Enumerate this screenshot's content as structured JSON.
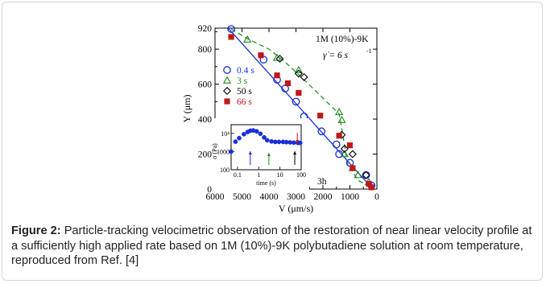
{
  "caption": {
    "label": "Figure 2:",
    "text": "Particle-tracking velocimetric observation of the restoration of near linear velocity profile at a sufficiently high applied rate based on 1M (10%)-9K polybutadiene solution at room temperature, reproduced from Ref. [4]"
  },
  "chart_data": [
    {
      "type": "scatter",
      "xlabel": "V (μm/s)",
      "ylabel": "Y (μm)",
      "xlim": [
        6000,
        0
      ],
      "ylim": [
        0,
        920
      ],
      "xticks": [
        "6000",
        "5000",
        "4000",
        "3000",
        "2000",
        "1000",
        "0"
      ],
      "yticks": [
        "0",
        "200",
        "400",
        "600",
        "800",
        "920"
      ],
      "annotations": {
        "sample": "1M (10%)-9K",
        "rate": "γ̇ = 6 s",
        "rate_exp": "-1",
        "panel": "3h"
      },
      "colors": {
        "blue": "#1a2fd6",
        "green": "#1c8a1c",
        "black": "#000000",
        "red": "#c01818"
      },
      "series": [
        {
          "name": "0.4 s",
          "marker": "circle-open",
          "color": "#1a2fd6",
          "points": [
            [
              5400,
              915
            ],
            [
              4200,
              740
            ],
            [
              3700,
              625
            ],
            [
              3400,
              575
            ],
            [
              3000,
              500
            ],
            [
              2700,
              415
            ],
            [
              2050,
              330
            ],
            [
              1500,
              255
            ],
            [
              1400,
              200
            ],
            [
              1000,
              150
            ],
            [
              400,
              80
            ],
            [
              200,
              20
            ]
          ],
          "fit_line": [
            [
              5500,
              918
            ],
            [
              150,
              0
            ]
          ]
        },
        {
          "name": "3 s",
          "marker": "triangle-open",
          "color": "#1c8a1c",
          "points": [
            [
              4800,
              855
            ],
            [
              3700,
              750
            ],
            [
              2900,
              680
            ],
            [
              1400,
              440
            ],
            [
              1300,
              395
            ],
            [
              1200,
              200
            ],
            [
              900,
              120
            ],
            [
              700,
              80
            ],
            [
              300,
              40
            ]
          ],
          "dashed_line": [
            [
              5400,
              915
            ],
            [
              4800,
              860
            ],
            [
              4000,
              800
            ],
            [
              3500,
              740
            ],
            [
              2800,
              640
            ],
            [
              2200,
              550
            ],
            [
              1400,
              430
            ],
            [
              1250,
              300
            ],
            [
              1100,
              150
            ],
            [
              700,
              50
            ],
            [
              100,
              0
            ]
          ]
        },
        {
          "name": "50 s",
          "marker": "diamond-open",
          "color": "#000000",
          "points": [
            [
              3600,
              745
            ],
            [
              2900,
              660
            ],
            [
              2700,
              640
            ],
            [
              1300,
              310
            ],
            [
              1200,
              230
            ],
            [
              900,
              200
            ],
            [
              400,
              80
            ]
          ]
        },
        {
          "name": "66 s",
          "marker": "square-filled",
          "color": "#c01818",
          "points": [
            [
              5400,
              870
            ],
            [
              4300,
              765
            ],
            [
              3700,
              650
            ],
            [
              3300,
              605
            ],
            [
              2900,
              550
            ],
            [
              2100,
              420
            ],
            [
              1400,
              305
            ],
            [
              1000,
              250
            ],
            [
              900,
              120
            ],
            [
              300,
              30
            ],
            [
              200,
              10
            ]
          ]
        }
      ]
    },
    {
      "type": "scatter",
      "inset": true,
      "xlabel": "time (s)",
      "ylabel": "σ (Pa)",
      "xscale": "log",
      "yscale": "log",
      "xlim": [
        0.05,
        100
      ],
      "ylim": [
        100,
        30000
      ],
      "xticks": [
        "0.1",
        "1",
        "10",
        "100"
      ],
      "yticks": [
        "100",
        "1000",
        "10⁴"
      ],
      "series": [
        {
          "name": "",
          "marker": "circle-filled",
          "color": "#1a2fd6",
          "points": [
            [
              0.05,
              1000
            ],
            [
              0.08,
              3500
            ],
            [
              0.12,
              5500
            ],
            [
              0.2,
              9000
            ],
            [
              0.3,
              12000
            ],
            [
              0.4,
              14000
            ],
            [
              0.55,
              14500
            ],
            [
              0.8,
              13000
            ],
            [
              1.2,
              9500
            ],
            [
              1.8,
              6000
            ],
            [
              2.5,
              4200
            ],
            [
              4,
              3600
            ],
            [
              6,
              3400
            ],
            [
              9,
              3400
            ],
            [
              14,
              3400
            ],
            [
              20,
              3300
            ],
            [
              30,
              3200
            ],
            [
              45,
              3100
            ],
            [
              70,
              3000
            ],
            [
              90,
              3000
            ]
          ]
        }
      ],
      "arrows": [
        {
          "time": 0.4,
          "color": "#1a2fd6"
        },
        {
          "time": 3,
          "color": "#1c8a1c"
        },
        {
          "time": 50,
          "color": "#000000"
        },
        {
          "time": 66,
          "color": "#c01818"
        }
      ]
    }
  ]
}
